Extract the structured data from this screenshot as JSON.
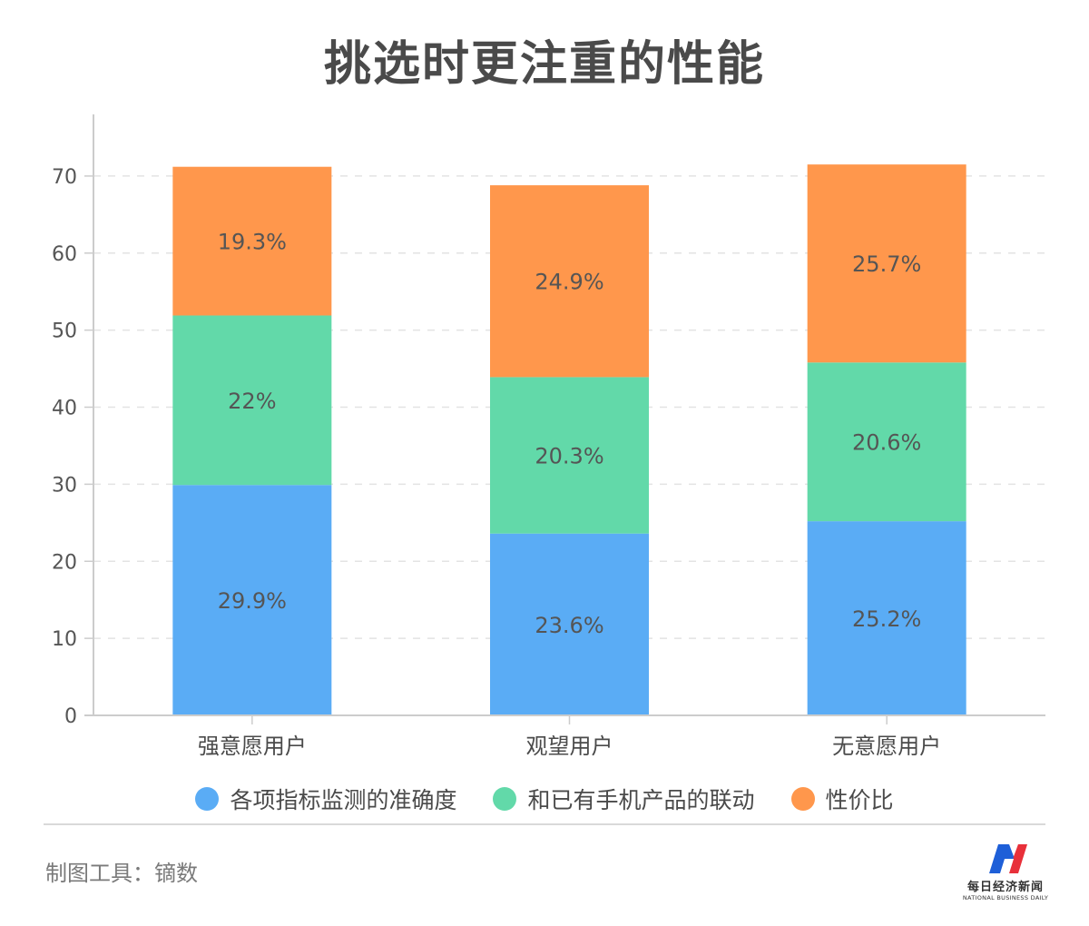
{
  "chart_data": {
    "type": "bar",
    "stacked": true,
    "title": "挑选时更注重的性能",
    "categories": [
      "强意愿用户",
      "观望用户",
      "无意愿用户"
    ],
    "series": [
      {
        "name": "各项指标监测的准确度",
        "values": [
          29.9,
          23.6,
          25.2
        ],
        "labels": [
          "29.9%",
          "23.6%",
          "25.2%"
        ],
        "color": "#5aacf5"
      },
      {
        "name": "和已有手机产品的联动",
        "values": [
          22,
          20.3,
          20.6
        ],
        "labels": [
          "22%",
          "20.3%",
          "20.6%"
        ],
        "color": "#62d9a9"
      },
      {
        "name": "性价比",
        "values": [
          19.3,
          24.9,
          25.7
        ],
        "labels": [
          "19.3%",
          "24.9%",
          "25.7%"
        ],
        "color": "#ff974c"
      }
    ],
    "ylim": [
      0,
      78
    ],
    "yticks": [
      0,
      10,
      20,
      30,
      40,
      50,
      60,
      70
    ],
    "grid": true,
    "legend_position": "bottom"
  },
  "footer": {
    "source": "制图工具：镝数",
    "logo_cn": "每日经济新闻",
    "logo_en": "NATIONAL BUSINESS DAILY"
  }
}
